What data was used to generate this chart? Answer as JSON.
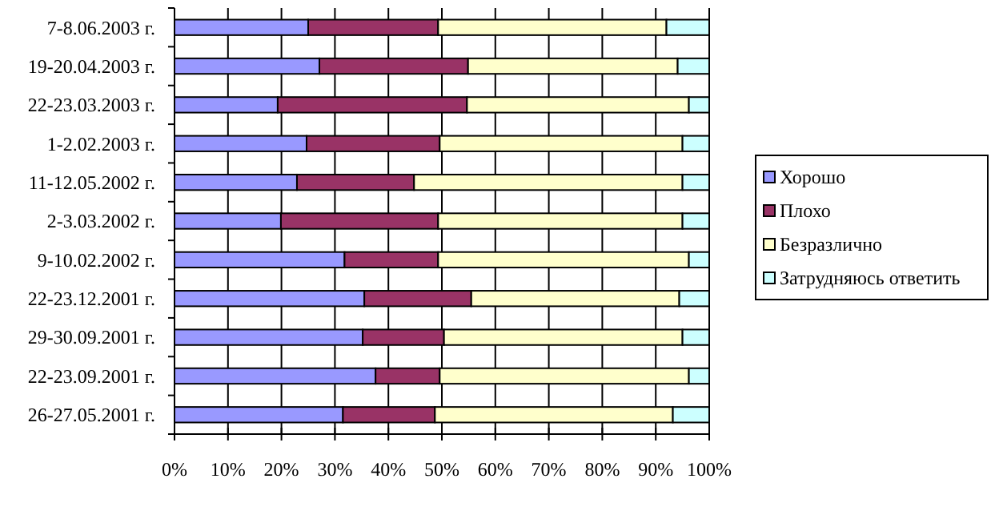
{
  "chart_data": {
    "type": "bar",
    "orientation": "horizontal",
    "stacked": true,
    "categories": [
      "7-8.06.2003 г.",
      "19-20.04.2003 г.",
      "22-23.03.2003 г.",
      "1-2.02.2003 г.",
      "11-12.05.2002 г.",
      "2-3.03.2002 г.",
      "9-10.02.2002 г.",
      "22-23.12.2001 г.",
      "29-30.09.2001 г.",
      "22-23.09.2001 г.",
      "26-27.05.2001 г."
    ],
    "series": [
      {
        "name": "Хорошо",
        "color": "#9999ff",
        "values": [
          25.0,
          27.1,
          19.3,
          24.7,
          22.9,
          19.9,
          31.8,
          35.5,
          35.2,
          37.6,
          31.5
        ]
      },
      {
        "name": "Плохо",
        "color": "#993366",
        "values": [
          24.3,
          27.8,
          35.4,
          24.9,
          21.9,
          29.4,
          17.5,
          20.0,
          15.2,
          12.0,
          17.2
        ]
      },
      {
        "name": "Безразлично",
        "color": "#ffffcc",
        "values": [
          42.7,
          39.2,
          41.5,
          45.4,
          50.2,
          45.7,
          46.9,
          38.9,
          44.6,
          46.6,
          44.5
        ]
      },
      {
        "name": "Затрудняюсь ответить",
        "color": "#ccffff",
        "values": [
          8.0,
          5.9,
          3.8,
          5.0,
          5.0,
          5.0,
          3.8,
          5.6,
          5.0,
          3.8,
          6.8
        ]
      }
    ],
    "xlim": [
      0,
      100
    ],
    "xticks": [
      {
        "value": 0,
        "label": "0%"
      },
      {
        "value": 10,
        "label": "10%"
      },
      {
        "value": 20,
        "label": "20%"
      },
      {
        "value": 30,
        "label": "30%"
      },
      {
        "value": 40,
        "label": "40%"
      },
      {
        "value": 50,
        "label": "50%"
      },
      {
        "value": 60,
        "label": "60%"
      },
      {
        "value": 70,
        "label": "70%"
      },
      {
        "value": 80,
        "label": "80%"
      },
      {
        "value": 90,
        "label": "90%"
      },
      {
        "value": 100,
        "label": "100%"
      }
    ],
    "grid": "x",
    "legend": "right"
  }
}
